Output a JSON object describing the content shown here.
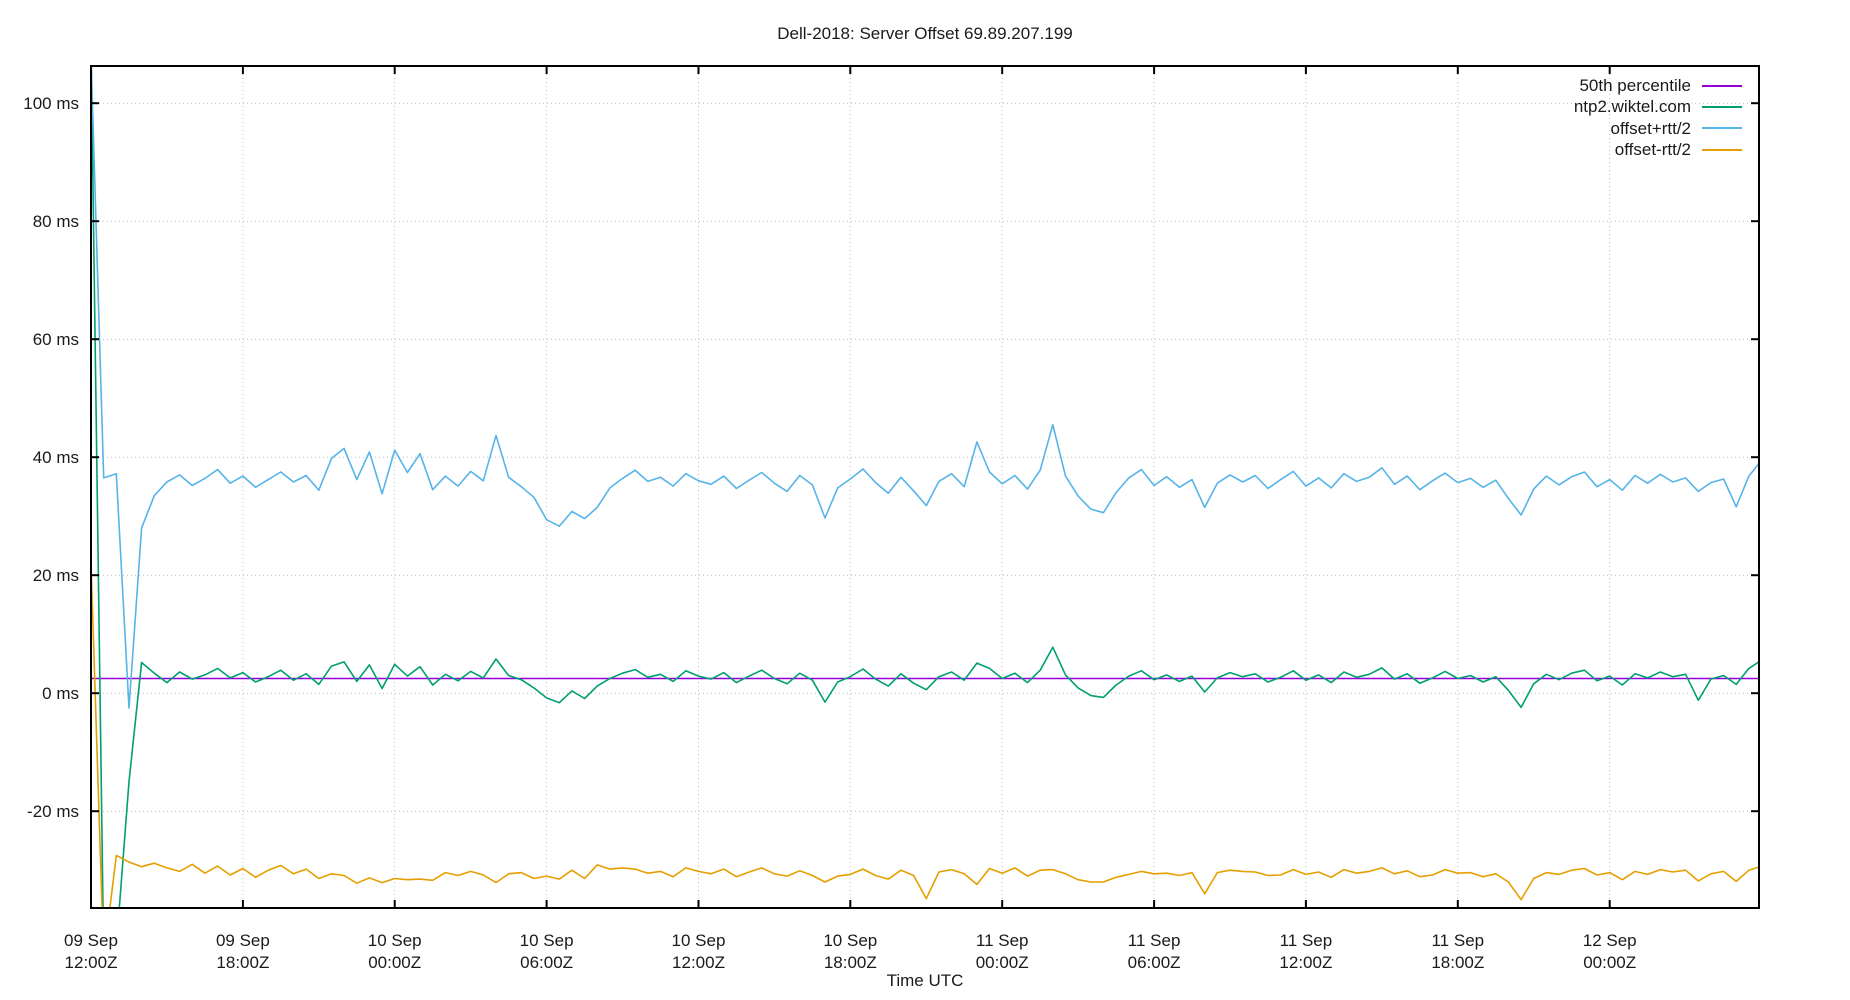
{
  "chart_data": {
    "type": "line",
    "title": "Dell-2018: Server Offset 69.89.207.199",
    "xlabel": "Time UTC",
    "ylabel": "",
    "y_unit": "ms",
    "grid": true,
    "legend_position": "top-right-inside",
    "ylim": [
      -36.4,
      106.3
    ],
    "xlim_hours": [
      0,
      65.9
    ],
    "x_start_label": "09 Sep 12:00Z",
    "x_step_hours": 0.5,
    "yticks": [
      {
        "value": 100,
        "label": "100 ms"
      },
      {
        "value": 80,
        "label": "80 ms"
      },
      {
        "value": 60,
        "label": "60 ms"
      },
      {
        "value": 40,
        "label": "40 ms"
      },
      {
        "value": 20,
        "label": "20 ms"
      },
      {
        "value": 0,
        "label": "0 ms"
      },
      {
        "value": -20,
        "label": "-20 ms"
      }
    ],
    "xticks": [
      {
        "hour": 0,
        "date": "09 Sep",
        "time": "12:00Z"
      },
      {
        "hour": 6,
        "date": "09 Sep",
        "time": "18:00Z"
      },
      {
        "hour": 12,
        "date": "10 Sep",
        "time": "00:00Z"
      },
      {
        "hour": 18,
        "date": "10 Sep",
        "time": "06:00Z"
      },
      {
        "hour": 24,
        "date": "10 Sep",
        "time": "12:00Z"
      },
      {
        "hour": 30,
        "date": "10 Sep",
        "time": "18:00Z"
      },
      {
        "hour": 36,
        "date": "11 Sep",
        "time": "00:00Z"
      },
      {
        "hour": 42,
        "date": "11 Sep",
        "time": "06:00Z"
      },
      {
        "hour": 48,
        "date": "11 Sep",
        "time": "12:00Z"
      },
      {
        "hour": 54,
        "date": "11 Sep",
        "time": "18:00Z"
      },
      {
        "hour": 60,
        "date": "12 Sep",
        "time": "00:00Z"
      }
    ],
    "series": [
      {
        "name": "50th percentile",
        "color": "#9400d3",
        "style": "hline",
        "value": 2.5
      },
      {
        "name": "ntp2.wiktel.com",
        "color": "#009e73",
        "style": "line",
        "values": [
          110,
          -45,
          -43,
          -15,
          5.2,
          3.4,
          1.8,
          3.6,
          2.4,
          3.1,
          4.2,
          2.6,
          3.5,
          1.9,
          2.8,
          3.9,
          2.2,
          3.3,
          1.5,
          4.6,
          5.3,
          2.0,
          4.8,
          0.8,
          4.9,
          2.9,
          4.5,
          1.4,
          3.2,
          2.1,
          3.7,
          2.6,
          5.8,
          3.0,
          2.3,
          0.9,
          -0.8,
          -1.6,
          0.4,
          -0.9,
          1.2,
          2.5,
          3.4,
          4.0,
          2.7,
          3.2,
          2.0,
          3.8,
          2.9,
          2.4,
          3.5,
          1.8,
          2.9,
          3.9,
          2.5,
          1.6,
          3.4,
          2.2,
          -1.5,
          1.9,
          2.8,
          4.1,
          2.4,
          1.2,
          3.3,
          1.7,
          0.6,
          2.8,
          3.6,
          2.2,
          5.1,
          4.2,
          2.5,
          3.4,
          1.8,
          3.9,
          7.8,
          3.1,
          0.9,
          -0.4,
          -0.7,
          1.4,
          2.9,
          3.8,
          2.3,
          3.1,
          2.0,
          2.9,
          0.2,
          2.6,
          3.5,
          2.8,
          3.3,
          1.9,
          2.7,
          3.8,
          2.2,
          3.1,
          1.8,
          3.6,
          2.7,
          3.2,
          4.3,
          2.4,
          3.3,
          1.7,
          2.6,
          3.7,
          2.5,
          3.0,
          1.9,
          2.8,
          0.5,
          -2.4,
          1.6,
          3.2,
          2.3,
          3.4,
          3.9,
          2.1,
          2.9,
          1.4,
          3.3,
          2.6,
          3.6,
          2.8,
          3.2,
          -1.2,
          2.4,
          3.0,
          1.5,
          4.2,
          5.6
        ]
      },
      {
        "name": "offset+rtt/2",
        "color": "#56b4e9",
        "style": "line",
        "values": [
          108,
          36.5,
          37.2,
          -2.5,
          28.0,
          33.5,
          35.8,
          37.0,
          35.2,
          36.4,
          37.9,
          35.6,
          36.8,
          34.9,
          36.2,
          37.5,
          35.8,
          36.9,
          34.4,
          39.8,
          41.5,
          36.2,
          40.9,
          33.8,
          41.2,
          37.4,
          40.6,
          34.5,
          36.8,
          35.1,
          37.6,
          36.0,
          43.7,
          36.6,
          35.0,
          33.2,
          29.4,
          28.3,
          30.8,
          29.6,
          31.5,
          34.8,
          36.4,
          37.8,
          35.9,
          36.6,
          35.1,
          37.2,
          36.0,
          35.4,
          36.8,
          34.7,
          36.1,
          37.4,
          35.6,
          34.2,
          36.9,
          35.3,
          29.7,
          34.8,
          36.3,
          38.0,
          35.7,
          33.9,
          36.6,
          34.3,
          31.8,
          35.9,
          37.2,
          35.0,
          42.6,
          37.5,
          35.5,
          36.9,
          34.6,
          37.8,
          45.5,
          36.8,
          33.4,
          31.2,
          30.6,
          34.0,
          36.5,
          37.9,
          35.2,
          36.7,
          34.9,
          36.2,
          31.5,
          35.6,
          37.0,
          35.8,
          36.9,
          34.7,
          36.2,
          37.6,
          35.1,
          36.5,
          34.8,
          37.2,
          35.9,
          36.6,
          38.2,
          35.4,
          36.8,
          34.5,
          36.0,
          37.3,
          35.7,
          36.4,
          34.9,
          36.1,
          33.0,
          30.2,
          34.6,
          36.8,
          35.3,
          36.7,
          37.5,
          35.0,
          36.2,
          34.4,
          36.9,
          35.6,
          37.1,
          35.8,
          36.5,
          34.2,
          35.7,
          36.3,
          31.6,
          36.8,
          39.5
        ]
      },
      {
        "name": "offset-rtt/2",
        "color": "#e69f00",
        "style": "line",
        "values": [
          22,
          -45,
          -27.5,
          -28.6,
          -29.4,
          -28.8,
          -29.6,
          -30.2,
          -29.0,
          -30.5,
          -29.3,
          -30.8,
          -29.7,
          -31.2,
          -30.0,
          -29.2,
          -30.6,
          -29.8,
          -31.4,
          -30.6,
          -30.9,
          -32.2,
          -31.3,
          -32.1,
          -31.4,
          -31.6,
          -31.5,
          -31.7,
          -30.4,
          -30.9,
          -30.2,
          -30.8,
          -32.1,
          -30.6,
          -30.4,
          -31.4,
          -31.0,
          -31.5,
          -30.0,
          -31.4,
          -29.1,
          -29.8,
          -29.6,
          -29.8,
          -30.5,
          -30.2,
          -31.1,
          -29.6,
          -30.2,
          -30.6,
          -29.8,
          -31.1,
          -30.3,
          -29.6,
          -30.6,
          -31.0,
          -30.1,
          -30.9,
          -32.0,
          -31.0,
          -30.7,
          -29.8,
          -30.9,
          -31.5,
          -30.0,
          -30.9,
          -34.8,
          -30.3,
          -29.9,
          -30.6,
          -32.4,
          -29.7,
          -30.5,
          -29.6,
          -31.0,
          -30.0,
          -29.9,
          -30.6,
          -31.6,
          -32.0,
          -32.0,
          -31.2,
          -30.7,
          -30.2,
          -30.6,
          -30.5,
          -30.9,
          -30.4,
          -34.0,
          -30.4,
          -30.0,
          -30.2,
          -30.3,
          -30.9,
          -30.8,
          -29.9,
          -30.7,
          -30.3,
          -31.2,
          -29.9,
          -30.5,
          -30.2,
          -29.6,
          -30.6,
          -30.1,
          -31.1,
          -30.8,
          -29.9,
          -30.5,
          -30.4,
          -31.1,
          -30.6,
          -32.0,
          -35.0,
          -31.4,
          -30.4,
          -30.7,
          -30.0,
          -29.7,
          -30.8,
          -30.4,
          -31.6,
          -30.2,
          -30.7,
          -29.9,
          -30.3,
          -30.0,
          -31.8,
          -30.6,
          -30.2,
          -31.9,
          -30.0,
          -29.3
        ]
      }
    ],
    "style": {
      "grid_color": "#bdbdbd",
      "border_color": "#000000",
      "background": "#ffffff"
    }
  }
}
